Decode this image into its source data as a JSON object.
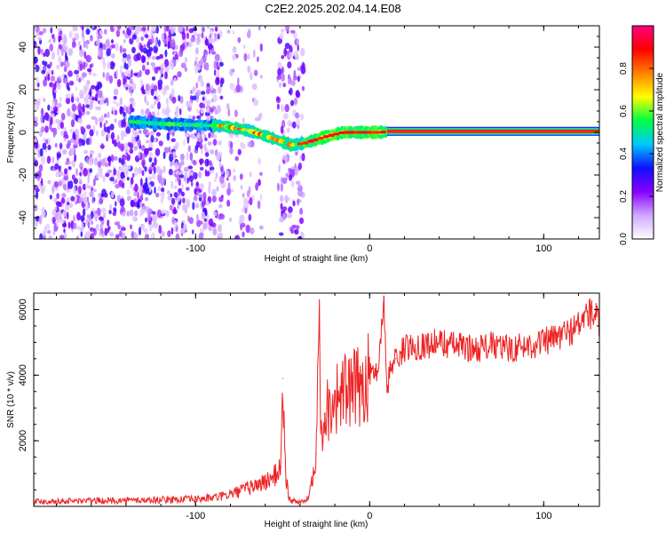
{
  "title": "C2E2.2025.202.04.14.E08",
  "chart_data": [
    {
      "type": "heatmap",
      "xlabel": "Height of straight line (km)",
      "ylabel": "Frequency (Hz)",
      "xlim": [
        -193,
        132
      ],
      "ylim": [
        -50,
        50
      ],
      "xticks": [
        -100,
        0,
        100
      ],
      "yticks": [
        -40,
        -20,
        0,
        20,
        40
      ],
      "grid": false,
      "colorbar": {
        "label": "Normalized spectral amplitude",
        "range": [
          0.0,
          1.0
        ],
        "ticks": [
          "0.0",
          "0.2",
          "0.4",
          "0.6",
          "0.8"
        ],
        "colors": [
          "#ffffff",
          "#cfa8ff",
          "#8800ff",
          "#1010ff",
          "#00c8ff",
          "#00ff40",
          "#ffff00",
          "#ff8000",
          "#ff0000",
          "#ff0080"
        ]
      },
      "ridge": {
        "x": [
          -137,
          -120,
          -85,
          -70,
          -55,
          -45,
          -37,
          -25,
          -15,
          -5,
          5,
          15,
          50,
          100,
          132
        ],
        "y": [
          5,
          4,
          3,
          1,
          -3,
          -6,
          -5,
          -2,
          0,
          0,
          0,
          0.5,
          0.5,
          0.5,
          0.5
        ]
      },
      "noise_regions": [
        {
          "x": [
            -193,
            -84
          ],
          "density": 0.85
        },
        {
          "x": [
            -82,
            -62
          ],
          "density": 0.3
        },
        {
          "x": [
            -53,
            -38
          ],
          "density": 0.6
        }
      ]
    },
    {
      "type": "line",
      "xlabel": "Height of straight line (km)",
      "ylabel": "SNR (10 * v/v)",
      "xlim": [
        -193,
        132
      ],
      "ylim": [
        0,
        6500
      ],
      "xticks": [
        -100,
        0,
        100
      ],
      "yticks": [
        2000,
        4000,
        6000
      ],
      "grid": false,
      "series": [
        {
          "color": "#ee2222",
          "x": [
            -193,
            -180,
            -160,
            -140,
            -120,
            -100,
            -90,
            -85,
            -80,
            -75,
            -70,
            -65,
            -60,
            -55,
            -51,
            -50,
            -48,
            -46,
            -44,
            -40,
            -37,
            -35,
            -33,
            -31,
            -29,
            -28,
            -26,
            -24,
            -20,
            -15,
            -10,
            -5,
            0,
            5,
            8,
            10,
            12,
            15,
            20,
            25,
            30,
            40,
            50,
            60,
            70,
            80,
            90,
            100,
            110,
            120,
            125,
            130,
            132
          ],
          "y": [
            150,
            160,
            170,
            180,
            200,
            220,
            260,
            300,
            380,
            450,
            550,
            650,
            750,
            900,
            1200,
            3900,
            800,
            200,
            150,
            140,
            150,
            300,
            900,
            1600,
            5800,
            2200,
            2800,
            3000,
            3300,
            3500,
            3500,
            3700,
            4000,
            4200,
            6400,
            3500,
            4300,
            4500,
            4800,
            4900,
            4900,
            5000,
            4900,
            4800,
            4900,
            4800,
            4900,
            5000,
            5200,
            5500,
            5900,
            5800,
            5500
          ]
        }
      ]
    }
  ]
}
